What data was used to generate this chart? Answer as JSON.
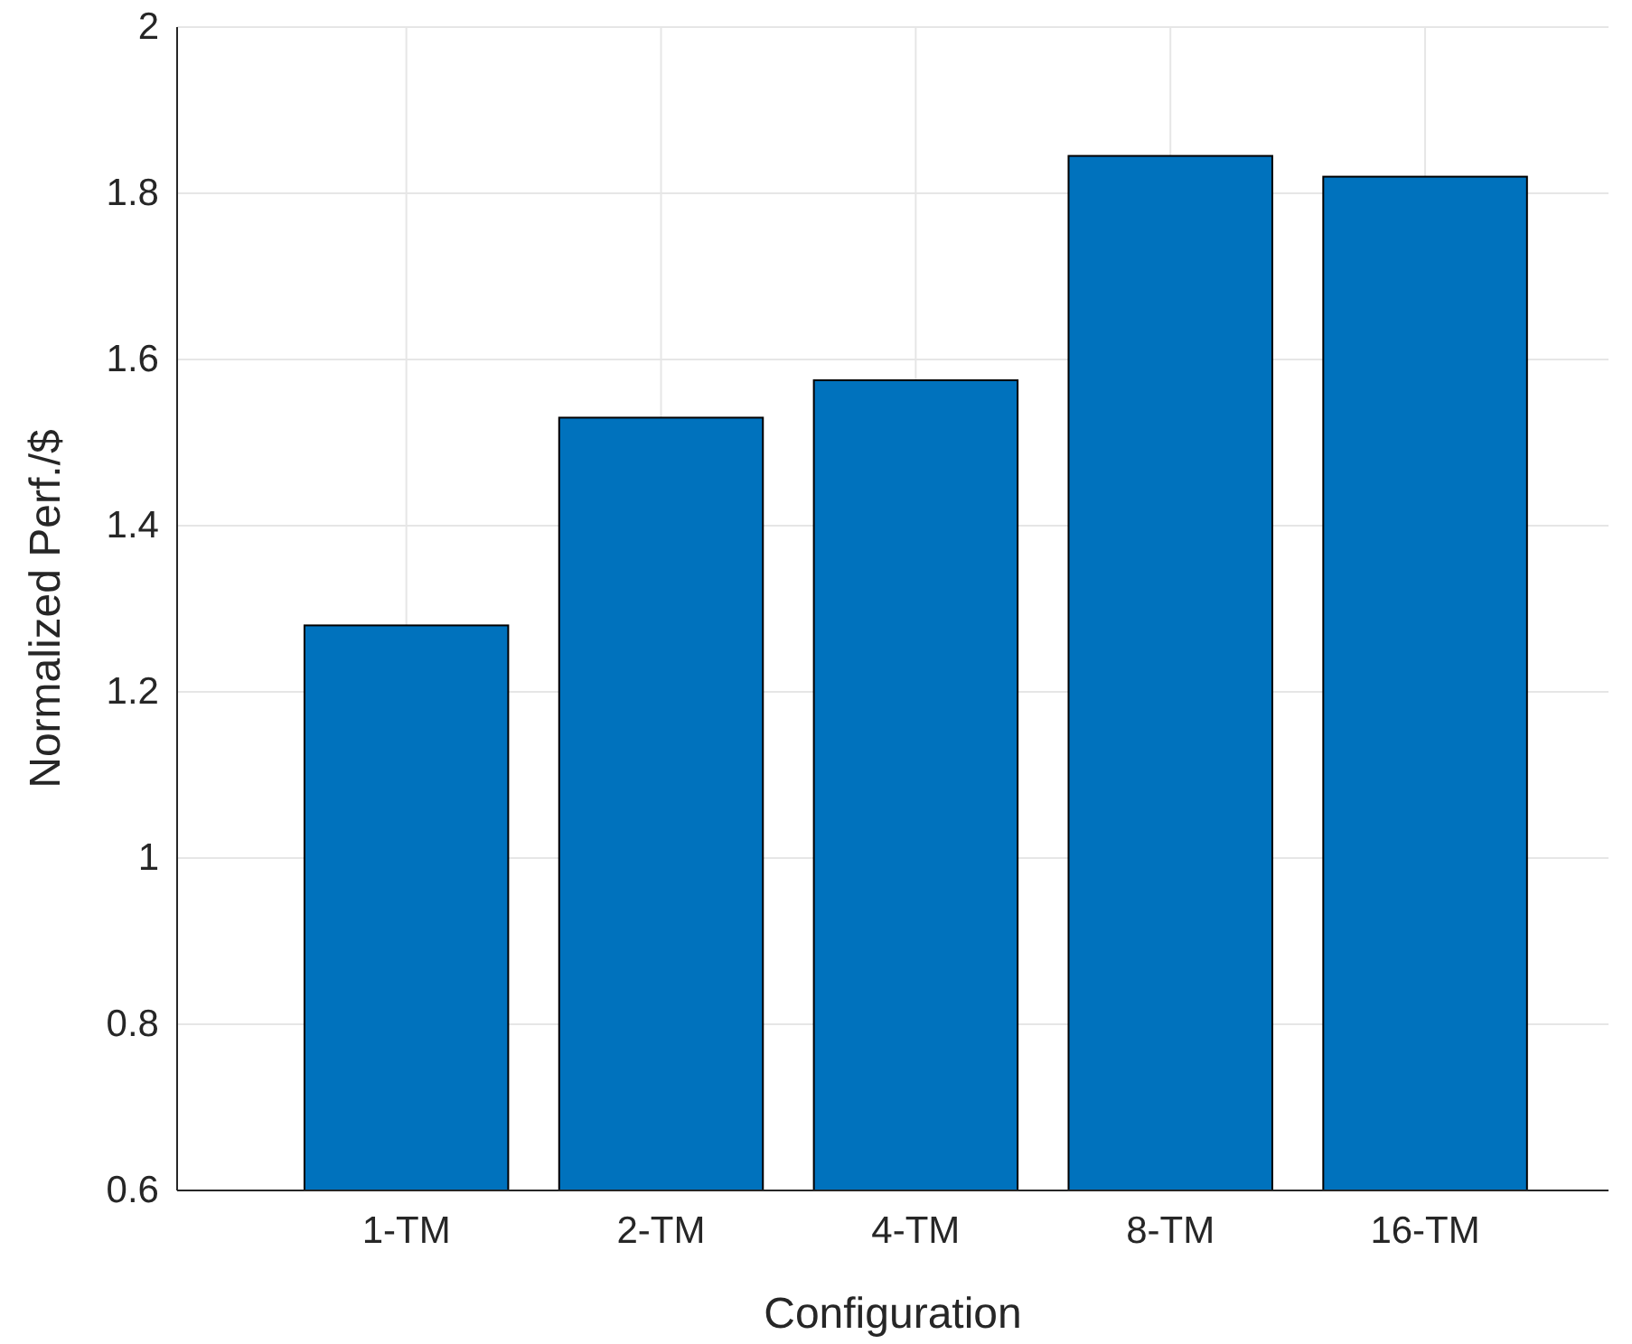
{
  "chart_data": {
    "type": "bar",
    "xlabel": "Configuration",
    "ylabel": "Normalized Perf./$",
    "categories": [
      "1-TM",
      "2-TM",
      "4-TM",
      "8-TM",
      "16-TM"
    ],
    "values": [
      1.28,
      1.53,
      1.575,
      1.845,
      1.82
    ],
    "color": "#0072bd",
    "ylim": [
      0.6,
      2
    ],
    "yticks": [
      0.6,
      0.8,
      1,
      1.2,
      1.4,
      1.6,
      1.8,
      2
    ],
    "grid": true
  }
}
